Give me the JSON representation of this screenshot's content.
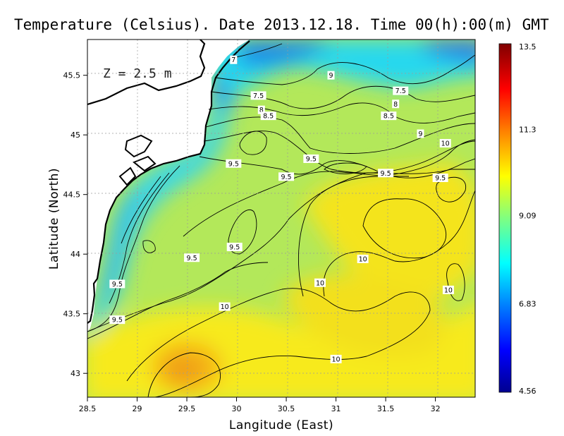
{
  "chart_data": {
    "type": "heatmap",
    "title": "Temperature (Celsius). Date 2013.12.18. Time 00(h):00(m) GMT",
    "xlabel": "Langitude (East)",
    "ylabel": "Latitude (North)",
    "annotation": "Z = 2.5 m",
    "xlim": [
      28.5,
      32.4
    ],
    "ylim": [
      42.8,
      45.8
    ],
    "x_ticks": [
      "28.5",
      "29",
      "29.5",
      "30",
      "30.5",
      "31",
      "31.5",
      "32"
    ],
    "x_tick_values": [
      28.5,
      29,
      29.5,
      30,
      30.5,
      31,
      31.5,
      32
    ],
    "y_ticks": [
      "43",
      "43.5",
      "44",
      "44.5",
      "45",
      "45.5"
    ],
    "y_tick_values": [
      43,
      43.5,
      44,
      44.5,
      45,
      45.5
    ],
    "grid": true,
    "colorbar": {
      "ticks": [
        "13.5",
        "11.3",
        "9.09",
        "6.83",
        "4.56"
      ],
      "tick_values": [
        13.5,
        11.3,
        9.09,
        6.83,
        4.56
      ],
      "min": 4.56,
      "max": 13.5
    },
    "contour_labels": [
      {
        "text": "7",
        "x": 29.97,
        "y": 45.63
      },
      {
        "text": "7.5",
        "x": 30.22,
        "y": 45.33
      },
      {
        "text": "8",
        "x": 30.25,
        "y": 45.21
      },
      {
        "text": "8.5",
        "x": 30.32,
        "y": 45.16
      },
      {
        "text": "9",
        "x": 30.95,
        "y": 45.5
      },
      {
        "text": "7.5",
        "x": 31.65,
        "y": 45.37
      },
      {
        "text": "8",
        "x": 31.6,
        "y": 45.26
      },
      {
        "text": "8.5",
        "x": 31.53,
        "y": 45.16
      },
      {
        "text": "9",
        "x": 31.85,
        "y": 45.01
      },
      {
        "text": "10",
        "x": 32.1,
        "y": 44.93
      },
      {
        "text": "9.5",
        "x": 29.97,
        "y": 44.76
      },
      {
        "text": "9.5",
        "x": 30.75,
        "y": 44.8
      },
      {
        "text": "9.5",
        "x": 30.5,
        "y": 44.65
      },
      {
        "text": "9.5",
        "x": 31.5,
        "y": 44.68
      },
      {
        "text": "9.5",
        "x": 32.05,
        "y": 44.64
      },
      {
        "text": "9.5",
        "x": 29.98,
        "y": 44.06
      },
      {
        "text": "9.5",
        "x": 29.55,
        "y": 43.97
      },
      {
        "text": "10",
        "x": 31.27,
        "y": 43.96
      },
      {
        "text": "9.5",
        "x": 28.8,
        "y": 43.75
      },
      {
        "text": "10",
        "x": 30.84,
        "y": 43.76
      },
      {
        "text": "10",
        "x": 32.13,
        "y": 43.7
      },
      {
        "text": "10",
        "x": 29.88,
        "y": 43.56
      },
      {
        "text": "9.5",
        "x": 28.8,
        "y": 43.45
      },
      {
        "text": "10",
        "x": 31.0,
        "y": 43.12
      }
    ]
  }
}
